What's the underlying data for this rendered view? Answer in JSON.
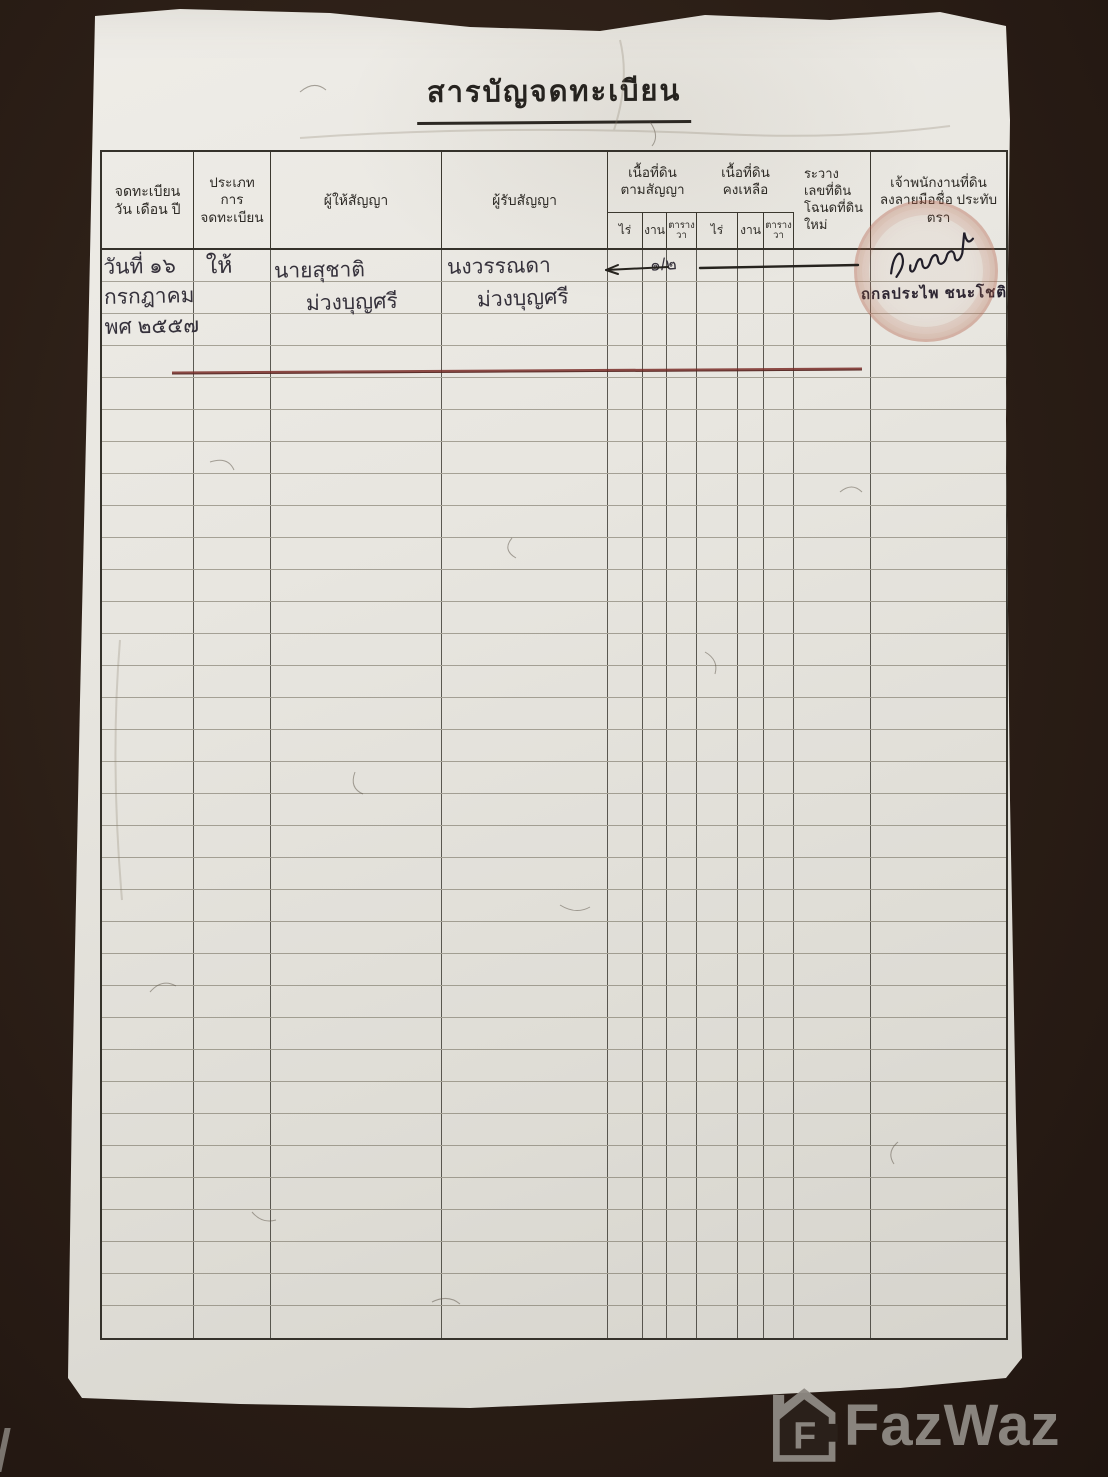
{
  "document": {
    "title": "สารบัญจดทะเบียน",
    "paper_color": "#e8e6e0",
    "background_color": "#2b1e16"
  },
  "table": {
    "row_count": 34,
    "headers": {
      "reg_date": "จดทะเบียน\nวัน เดือน ปี",
      "reg_type": "ประเภท\nการ\nจดทะเบียน",
      "grantor": "ผู้ให้สัญญา",
      "grantee": "ผู้รับสัญญา",
      "area_contract": "เนื้อที่ดิน\nตามสัญญา",
      "area_remaining": "เนื้อที่ดิน\nคงเหลือ",
      "unit_rai": "ไร่",
      "unit_ngan": "งาน",
      "unit_wa": "ตาราง\nวา",
      "map_sheet": "ระวาง\nเลขที่ดิน\nโฉนดที่ดิน\nใหม่",
      "officer": "เจ้าพนักงานที่ดิน\nลงลายมือชื่อ ประทับตรา"
    },
    "entry": {
      "date_lines": [
        "วันที่ ๑๖",
        "กรกฎาคม",
        "พศ ๒๕๕๗"
      ],
      "registration_type": "ให้",
      "grantor_lines": [
        "นายสุชาติ",
        "ม่วงบุญศรี"
      ],
      "grantee_lines": [
        "นงวรรณดา",
        "ม่วงบุญศรี"
      ],
      "area_contract": {
        "rai": "—",
        "ngan": "",
        "wa": "๑/๒"
      },
      "area_remaining": {
        "rai": "—",
        "ngan": "—",
        "wa": "—"
      },
      "officer_stamp_name": "ถกลประไพ ชนะโชติ",
      "red_rule_color": "#7a2d28",
      "seal_color": "#b2604c"
    }
  },
  "watermark": {
    "brand": "FazWaz"
  }
}
